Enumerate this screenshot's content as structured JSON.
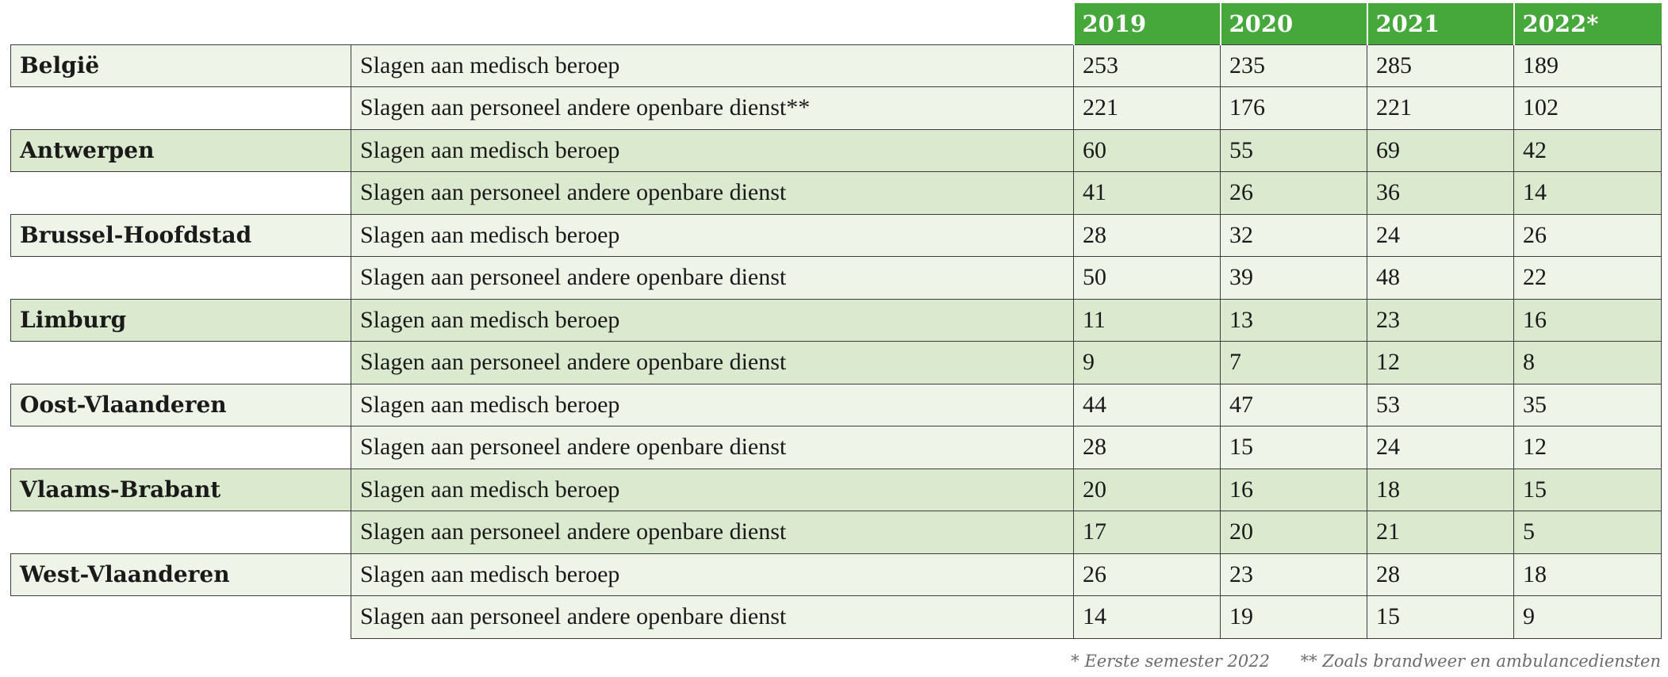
{
  "table": {
    "headers": [
      "2019",
      "2020",
      "2021",
      "2022*"
    ],
    "regions": [
      {
        "name": "België",
        "rows": [
          {
            "label": "Slagen aan medisch beroep",
            "values": [
              "253",
              "235",
              "285",
              "189"
            ]
          },
          {
            "label": "Slagen aan personeel andere openbare dienst**",
            "values": [
              "221",
              "176",
              "221",
              "102"
            ]
          }
        ]
      },
      {
        "name": "Antwerpen",
        "rows": [
          {
            "label": "Slagen aan medisch beroep",
            "values": [
              "60",
              "55",
              "69",
              "42"
            ]
          },
          {
            "label": "Slagen aan personeel andere openbare dienst",
            "values": [
              "41",
              "26",
              "36",
              "14"
            ]
          }
        ]
      },
      {
        "name": "Brussel-Hoofdstad",
        "rows": [
          {
            "label": "Slagen aan medisch beroep",
            "values": [
              "28",
              "32",
              "24",
              "26"
            ]
          },
          {
            "label": "Slagen aan personeel andere openbare dienst",
            "values": [
              "50",
              "39",
              "48",
              "22"
            ]
          }
        ]
      },
      {
        "name": "Limburg",
        "rows": [
          {
            "label": "Slagen aan medisch beroep",
            "values": [
              "11",
              "13",
              "23",
              "16"
            ]
          },
          {
            "label": "Slagen aan personeel andere openbare dienst",
            "values": [
              "9",
              "7",
              "12",
              "8"
            ]
          }
        ]
      },
      {
        "name": "Oost-Vlaanderen",
        "rows": [
          {
            "label": "Slagen aan medisch beroep",
            "values": [
              "44",
              "47",
              "53",
              "35"
            ]
          },
          {
            "label": "Slagen aan personeel andere openbare dienst",
            "values": [
              "28",
              "15",
              "24",
              "12"
            ]
          }
        ]
      },
      {
        "name": "Vlaams-Brabant",
        "rows": [
          {
            "label": "Slagen aan medisch beroep",
            "values": [
              "20",
              "16",
              "18",
              "15"
            ]
          },
          {
            "label": "Slagen aan personeel andere openbare dienst",
            "values": [
              "17",
              "20",
              "21",
              "5"
            ]
          }
        ]
      },
      {
        "name": "West-Vlaanderen",
        "rows": [
          {
            "label": "Slagen aan medisch beroep",
            "values": [
              "26",
              "23",
              "28",
              "18"
            ]
          },
          {
            "label": "Slagen aan personeel andere openbare dienst",
            "values": [
              "14",
              "19",
              "15",
              "9"
            ]
          }
        ]
      }
    ]
  },
  "footnotes": {
    "first": "* Eerste semester 2022",
    "second": "** Zoals brandweer en ambulancediensten"
  },
  "colors": {
    "header_green": "#46a73a",
    "row_light": "#eef5e8",
    "row_mid": "#dbe9cf"
  }
}
